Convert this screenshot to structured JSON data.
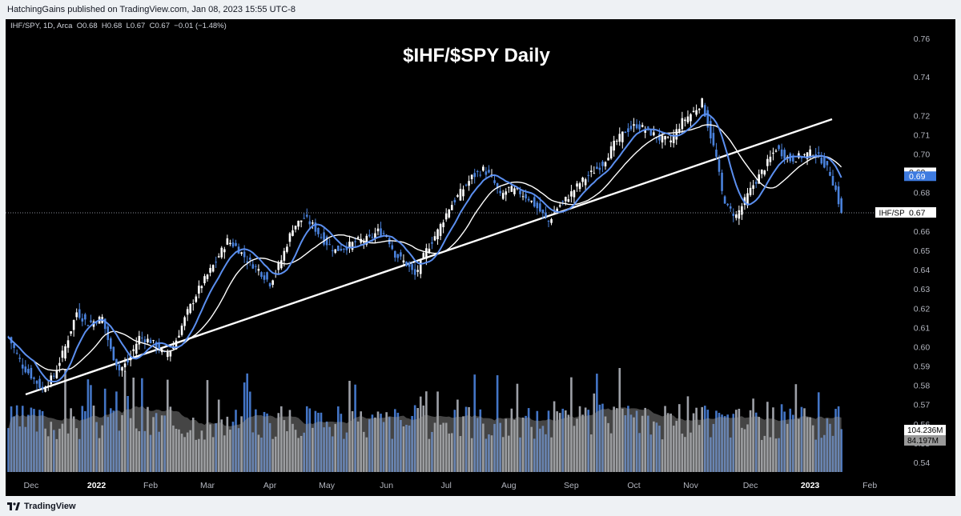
{
  "publisher_line": "HatchingGains published on TradingView.com, Jan 08, 2023 15:55 UTC-8",
  "brand": "TradingView",
  "colors": {
    "background": "#000000",
    "candle_up": "#ffffff",
    "candle_down": "#4a82dc",
    "ma_fast": "#5b8ff0",
    "ma_slow": "#ffffff",
    "trendline": "#ffffff",
    "volume_up": "#b8bcc4",
    "volume_down": "#4a82dc",
    "volume_ma_fill": "#9a9a9a"
  },
  "chart_data": {
    "type": "candlestick",
    "title": "$IHF/$SPY Daily",
    "legend": {
      "symbol": "IHF/SPY, 1D, Arca",
      "open_label": "O",
      "open": "0.68",
      "high_label": "H",
      "high": "0.68",
      "low_label": "L",
      "low": "0.67",
      "close_label": "C",
      "close": "0.67",
      "change": "−0.01 (−1.48%)"
    },
    "y_axis": {
      "range": [
        0.535,
        0.765
      ],
      "ticks": [
        "0.76",
        "0.74",
        "0.72",
        "0.71",
        "0.70",
        "0.68",
        "0.66",
        "0.65",
        "0.64",
        "0.63",
        "0.62",
        "0.61",
        "0.60",
        "0.59",
        "0.58",
        "0.57",
        "0.56",
        "0.55",
        "0.54"
      ]
    },
    "x_axis": {
      "ticks": [
        "Dec",
        "2022",
        "Feb",
        "Mar",
        "Apr",
        "May",
        "Jun",
        "Jul",
        "Aug",
        "Sep",
        "Oct",
        "Nov",
        "Dec",
        "2023",
        "Feb"
      ]
    },
    "price_tags": [
      {
        "label": "0.69",
        "value": 0.6905,
        "style": "white"
      },
      {
        "label": "0.69",
        "value": 0.6885,
        "style": "blue"
      },
      {
        "label": "0.67",
        "value": 0.6695,
        "style": "last",
        "name": "IHF/SPY"
      }
    ],
    "volume_tags": [
      {
        "label": "104.236M"
      },
      {
        "label": "84.197M"
      }
    ],
    "price_keyframes": [
      [
        0,
        0.605
      ],
      [
        5,
        0.59
      ],
      [
        12,
        0.578
      ],
      [
        16,
        0.585
      ],
      [
        20,
        0.6
      ],
      [
        24,
        0.618
      ],
      [
        28,
        0.612
      ],
      [
        33,
        0.615
      ],
      [
        36,
        0.598
      ],
      [
        39,
        0.588
      ],
      [
        42,
        0.592
      ],
      [
        46,
        0.605
      ],
      [
        50,
        0.603
      ],
      [
        55,
        0.596
      ],
      [
        58,
        0.6
      ],
      [
        63,
        0.618
      ],
      [
        67,
        0.63
      ],
      [
        72,
        0.642
      ],
      [
        77,
        0.655
      ],
      [
        80,
        0.652
      ],
      [
        84,
        0.645
      ],
      [
        88,
        0.64
      ],
      [
        92,
        0.633
      ],
      [
        96,
        0.645
      ],
      [
        100,
        0.662
      ],
      [
        104,
        0.667
      ],
      [
        107,
        0.663
      ],
      [
        111,
        0.655
      ],
      [
        115,
        0.65
      ],
      [
        119,
        0.652
      ],
      [
        123,
        0.655
      ],
      [
        127,
        0.656
      ],
      [
        130,
        0.66
      ],
      [
        133,
        0.658
      ],
      [
        136,
        0.648
      ],
      [
        140,
        0.643
      ],
      [
        143,
        0.637
      ],
      [
        147,
        0.65
      ],
      [
        151,
        0.66
      ],
      [
        155,
        0.672
      ],
      [
        159,
        0.68
      ],
      [
        163,
        0.688
      ],
      [
        167,
        0.692
      ],
      [
        170,
        0.688
      ],
      [
        173,
        0.678
      ],
      [
        176,
        0.682
      ],
      [
        180,
        0.68
      ],
      [
        183,
        0.677
      ],
      [
        186,
        0.672
      ],
      [
        190,
        0.665
      ],
      [
        193,
        0.672
      ],
      [
        197,
        0.678
      ],
      [
        201,
        0.685
      ],
      [
        205,
        0.69
      ],
      [
        209,
        0.695
      ],
      [
        213,
        0.705
      ],
      [
        217,
        0.712
      ],
      [
        221,
        0.715
      ],
      [
        225,
        0.712
      ],
      [
        229,
        0.708
      ],
      [
        233,
        0.707
      ],
      [
        237,
        0.717
      ],
      [
        241,
        0.722
      ],
      [
        244,
        0.727
      ],
      [
        246,
        0.715
      ],
      [
        249,
        0.698
      ],
      [
        251,
        0.68
      ],
      [
        253,
        0.672
      ],
      [
        256,
        0.668
      ],
      [
        258,
        0.673
      ],
      [
        262,
        0.684
      ],
      [
        266,
        0.693
      ],
      [
        270,
        0.703
      ],
      [
        275,
        0.697
      ],
      [
        279,
        0.699
      ],
      [
        283,
        0.701
      ],
      [
        286,
        0.697
      ],
      [
        289,
        0.69
      ],
      [
        291,
        0.681
      ],
      [
        293,
        0.6695
      ]
    ]
  }
}
